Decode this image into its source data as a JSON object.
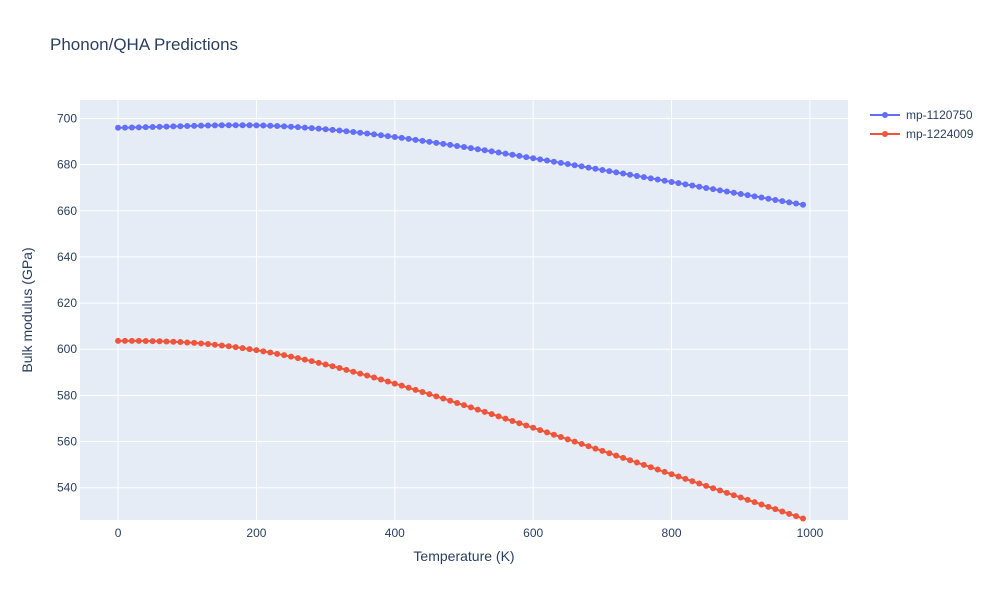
{
  "chart_data": {
    "type": "line",
    "title": "Phonon/QHA Predictions",
    "xlabel": "Temperature (K)",
    "ylabel": "Bulk modulus (GPa)",
    "xlim": [
      -55,
      1055
    ],
    "ylim": [
      526,
      708
    ],
    "xticks": [
      0,
      200,
      400,
      600,
      800,
      1000
    ],
    "yticks": [
      540,
      560,
      580,
      600,
      620,
      640,
      660,
      680,
      700
    ],
    "grid": true,
    "legend_position": "top-right",
    "x": [
      0,
      10,
      20,
      30,
      40,
      50,
      60,
      70,
      80,
      90,
      100,
      110,
      120,
      130,
      140,
      150,
      160,
      170,
      180,
      190,
      200,
      210,
      220,
      230,
      240,
      250,
      260,
      270,
      280,
      290,
      300,
      310,
      320,
      330,
      340,
      350,
      360,
      370,
      380,
      390,
      400,
      410,
      420,
      430,
      440,
      450,
      460,
      470,
      480,
      490,
      500,
      510,
      520,
      530,
      540,
      550,
      560,
      570,
      580,
      590,
      600,
      610,
      620,
      630,
      640,
      650,
      660,
      670,
      680,
      690,
      700,
      710,
      720,
      730,
      740,
      750,
      760,
      770,
      780,
      790,
      800,
      810,
      820,
      830,
      840,
      850,
      860,
      870,
      880,
      890,
      900,
      910,
      920,
      930,
      940,
      950,
      960,
      970,
      980,
      990
    ],
    "series": [
      {
        "name": "mp-1120750",
        "color": "#636efa",
        "values": [
          696.0,
          696.05,
          696.1,
          696.15,
          696.22,
          696.3,
          696.38,
          696.47,
          696.55,
          696.64,
          696.73,
          696.81,
          696.88,
          696.94,
          697.0,
          697.04,
          697.06,
          697.08,
          697.08,
          697.06,
          697.02,
          696.94,
          696.84,
          696.72,
          696.58,
          696.42,
          696.24,
          696.04,
          695.82,
          695.58,
          695.32,
          695.05,
          694.76,
          694.46,
          694.14,
          693.81,
          693.47,
          693.11,
          692.74,
          692.36,
          691.97,
          691.57,
          691.16,
          690.74,
          690.31,
          689.88,
          689.44,
          688.99,
          688.54,
          688.08,
          687.62,
          687.15,
          686.68,
          686.2,
          685.72,
          685.24,
          684.75,
          684.26,
          683.77,
          683.27,
          682.77,
          682.27,
          681.77,
          681.26,
          680.75,
          680.24,
          679.73,
          679.22,
          678.71,
          678.2,
          677.68,
          677.17,
          676.65,
          676.13,
          675.61,
          675.09,
          674.57,
          674.05,
          673.53,
          673.01,
          672.49,
          671.97,
          671.45,
          670.93,
          670.41,
          669.89,
          669.37,
          668.85,
          668.33,
          667.81,
          667.29,
          666.77,
          666.25,
          665.73,
          665.21,
          664.69,
          664.17,
          663.65,
          663.13,
          662.61
        ]
      },
      {
        "name": "mp-1224009",
        "color": "#ef553b",
        "values": [
          603.6,
          603.62,
          603.62,
          603.6,
          603.57,
          603.52,
          603.45,
          603.36,
          603.25,
          603.11,
          602.94,
          602.74,
          602.51,
          602.25,
          601.96,
          601.64,
          601.29,
          600.91,
          600.5,
          600.06,
          599.59,
          599.09,
          598.56,
          598.0,
          597.42,
          596.81,
          596.17,
          595.51,
          594.82,
          594.11,
          593.38,
          592.63,
          591.86,
          591.07,
          590.26,
          589.44,
          588.6,
          587.75,
          586.88,
          586.0,
          585.11,
          584.21,
          583.3,
          582.38,
          581.45,
          580.52,
          579.58,
          578.63,
          577.68,
          576.72,
          575.76,
          574.79,
          573.82,
          572.85,
          571.87,
          570.89,
          569.91,
          568.92,
          567.93,
          566.94,
          565.95,
          564.96,
          563.96,
          562.96,
          561.96,
          560.96,
          559.96,
          558.96,
          557.95,
          556.95,
          555.94,
          554.93,
          553.92,
          552.91,
          551.9,
          550.89,
          549.88,
          548.87,
          547.86,
          546.85,
          545.84,
          544.83,
          543.82,
          542.81,
          541.8,
          540.79,
          539.78,
          538.77,
          537.76,
          536.75,
          535.74,
          534.73,
          533.72,
          532.71,
          531.7,
          530.69,
          529.68,
          528.67,
          527.66,
          526.65
        ]
      }
    ]
  }
}
